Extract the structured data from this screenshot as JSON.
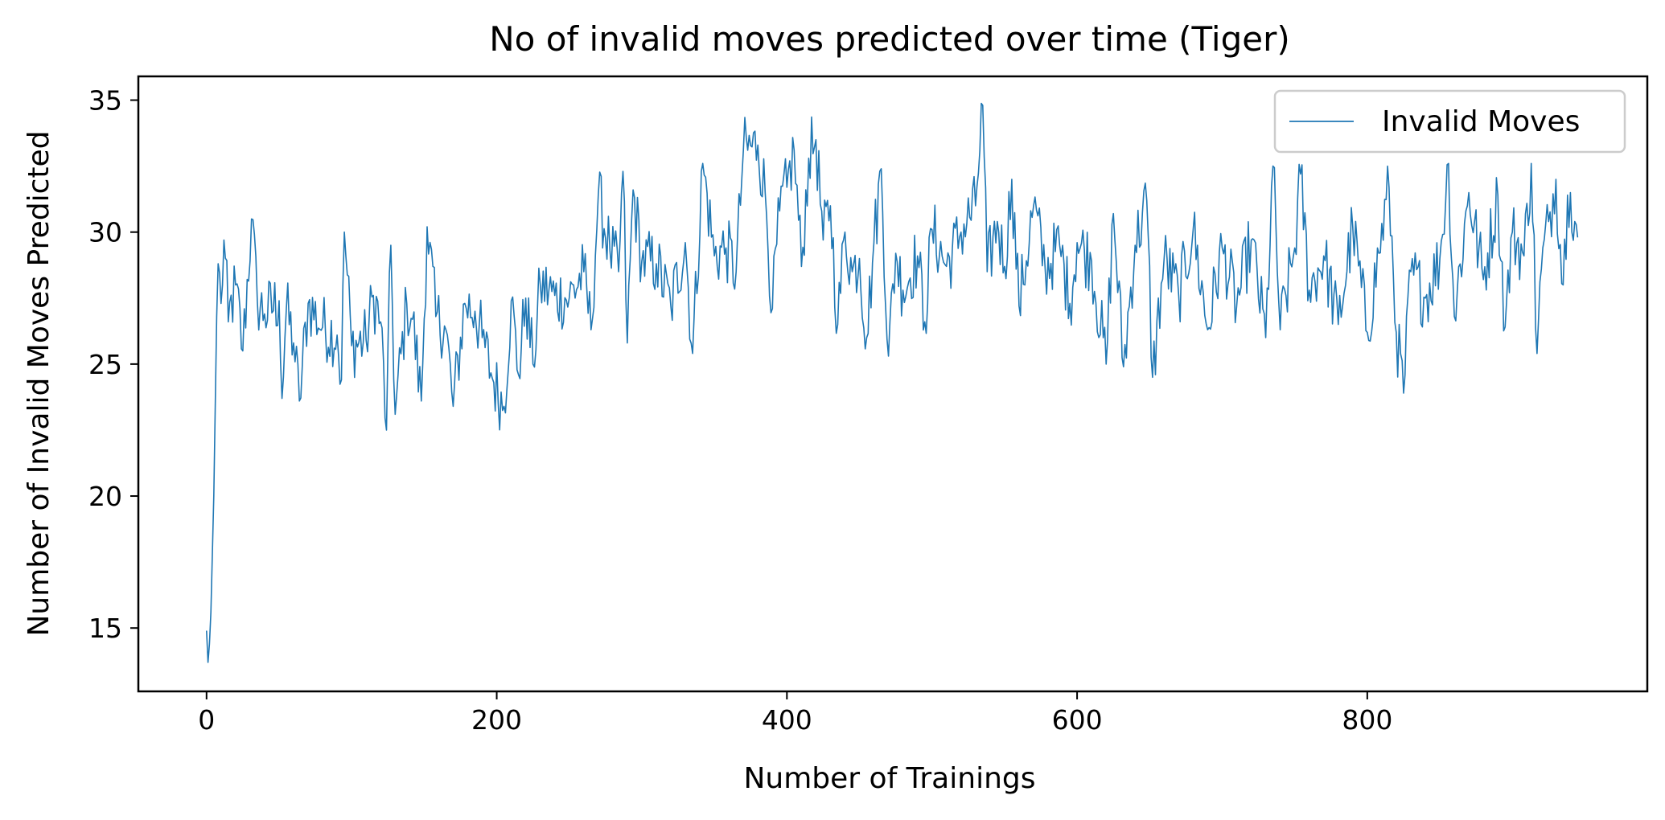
{
  "chart_data": {
    "type": "line",
    "title": "No of invalid moves predicted over time (Tiger)",
    "xlabel": "Number of Trainings",
    "ylabel": "Number of Invalid Moves Predicted",
    "xlim": [
      -47,
      993
    ],
    "ylim": [
      12.6,
      35.9
    ],
    "xticks": [
      0,
      200,
      400,
      600,
      800
    ],
    "yticks": [
      15,
      20,
      25,
      30,
      35
    ],
    "grid": false,
    "legend_position": "top-right",
    "series": [
      {
        "name": "Invalid Moves",
        "color": "#1f77b4",
        "anchors": [
          [
            0,
            14.9
          ],
          [
            1,
            13.7
          ],
          [
            2,
            14.4
          ],
          [
            3,
            15.6
          ],
          [
            5,
            20.0
          ],
          [
            7,
            26.8
          ],
          [
            8,
            28.8
          ],
          [
            10,
            27.3
          ],
          [
            12,
            29.7
          ],
          [
            15,
            26.6
          ],
          [
            20,
            28.0
          ],
          [
            25,
            25.5
          ],
          [
            31,
            30.5
          ],
          [
            35,
            27.4
          ],
          [
            40,
            26.9
          ],
          [
            50,
            27.4
          ],
          [
            52,
            23.7
          ],
          [
            55,
            27.1
          ],
          [
            60,
            25.8
          ],
          [
            64,
            23.6
          ],
          [
            70,
            27.3
          ],
          [
            80,
            26.4
          ],
          [
            90,
            26.1
          ],
          [
            93,
            24.4
          ],
          [
            95,
            30.0
          ],
          [
            100,
            25.7
          ],
          [
            110,
            25.9
          ],
          [
            115,
            27.6
          ],
          [
            120,
            26.6
          ],
          [
            124,
            22.5
          ],
          [
            127,
            29.5
          ],
          [
            130,
            23.1
          ],
          [
            138,
            27.3
          ],
          [
            142,
            26.7
          ],
          [
            148,
            23.6
          ],
          [
            152,
            30.2
          ],
          [
            158,
            26.8
          ],
          [
            165,
            26.3
          ],
          [
            170,
            23.4
          ],
          [
            178,
            27.3
          ],
          [
            185,
            27.0
          ],
          [
            190,
            26.0
          ],
          [
            198,
            24.3
          ],
          [
            205,
            23.4
          ],
          [
            210,
            27.4
          ],
          [
            215,
            24.6
          ],
          [
            220,
            27.5
          ],
          [
            225,
            25.0
          ],
          [
            230,
            28.0
          ],
          [
            240,
            27.6
          ],
          [
            250,
            27.5
          ],
          [
            260,
            28.5
          ],
          [
            265,
            26.3
          ],
          [
            270,
            31.4
          ],
          [
            278,
            29.3
          ],
          [
            284,
            28.5
          ],
          [
            287,
            32.3
          ],
          [
            290,
            25.8
          ],
          [
            294,
            31.6
          ],
          [
            300,
            28.9
          ],
          [
            310,
            28.8
          ],
          [
            320,
            27.2
          ],
          [
            330,
            29.6
          ],
          [
            335,
            25.4
          ],
          [
            342,
            32.6
          ],
          [
            350,
            29.1
          ],
          [
            358,
            29.4
          ],
          [
            365,
            28.5
          ],
          [
            370,
            33.1
          ],
          [
            380,
            33.3
          ],
          [
            385,
            31.5
          ],
          [
            390,
            27.1
          ],
          [
            395,
            30.8
          ],
          [
            400,
            31.7
          ],
          [
            405,
            33.1
          ],
          [
            410,
            28.7
          ],
          [
            415,
            32.8
          ],
          [
            420,
            33.5
          ],
          [
            425,
            29.7
          ],
          [
            430,
            31.0
          ],
          [
            435,
            26.5
          ],
          [
            440,
            30.0
          ],
          [
            445,
            28.5
          ],
          [
            450,
            29.0
          ],
          [
            455,
            26.0
          ],
          [
            460,
            29.6
          ],
          [
            465,
            32.4
          ],
          [
            470,
            25.3
          ],
          [
            475,
            29.2
          ],
          [
            480,
            27.8
          ],
          [
            490,
            29.1
          ],
          [
            495,
            26.6
          ],
          [
            500,
            30.1
          ],
          [
            510,
            28.7
          ],
          [
            520,
            30.0
          ],
          [
            530,
            31.0
          ],
          [
            535,
            34.8
          ],
          [
            538,
            28.5
          ],
          [
            545,
            30.4
          ],
          [
            550,
            28.7
          ],
          [
            555,
            32.0
          ],
          [
            560,
            27.2
          ],
          [
            570,
            31.0
          ],
          [
            578,
            28.6
          ],
          [
            588,
            29.5
          ],
          [
            595,
            27.3
          ],
          [
            600,
            29.6
          ],
          [
            610,
            28.9
          ],
          [
            620,
            25.0
          ],
          [
            625,
            30.7
          ],
          [
            632,
            24.9
          ],
          [
            640,
            29.5
          ],
          [
            648,
            31.2
          ],
          [
            652,
            24.5
          ],
          [
            660,
            29.0
          ],
          [
            670,
            27.6
          ],
          [
            680,
            30.1
          ],
          [
            690,
            26.3
          ],
          [
            700,
            29.4
          ],
          [
            710,
            27.2
          ],
          [
            720,
            29.7
          ],
          [
            730,
            26.0
          ],
          [
            735,
            32.5
          ],
          [
            740,
            26.3
          ],
          [
            750,
            29.4
          ],
          [
            754,
            32.2
          ],
          [
            760,
            27.8
          ],
          [
            770,
            29.1
          ],
          [
            780,
            26.5
          ],
          [
            790,
            30.2
          ],
          [
            800,
            26.2
          ],
          [
            808,
            29.2
          ],
          [
            815,
            31.7
          ],
          [
            820,
            26.2
          ],
          [
            825,
            23.9
          ],
          [
            830,
            28.5
          ],
          [
            840,
            27.5
          ],
          [
            850,
            29.0
          ],
          [
            856,
            32.6
          ],
          [
            860,
            26.8
          ],
          [
            870,
            31.5
          ],
          [
            880,
            28.2
          ],
          [
            890,
            31.4
          ],
          [
            895,
            26.4
          ],
          [
            900,
            30.0
          ],
          [
            908,
            29.1
          ],
          [
            913,
            32.6
          ],
          [
            917,
            25.4
          ],
          [
            920,
            28.6
          ],
          [
            925,
            30.4
          ],
          [
            930,
            32.0
          ],
          [
            935,
            28.0
          ],
          [
            938,
            31.4
          ],
          [
            940,
            31.5
          ],
          [
            943,
            30.4
          ],
          [
            945,
            29.8
          ]
        ]
      }
    ]
  }
}
